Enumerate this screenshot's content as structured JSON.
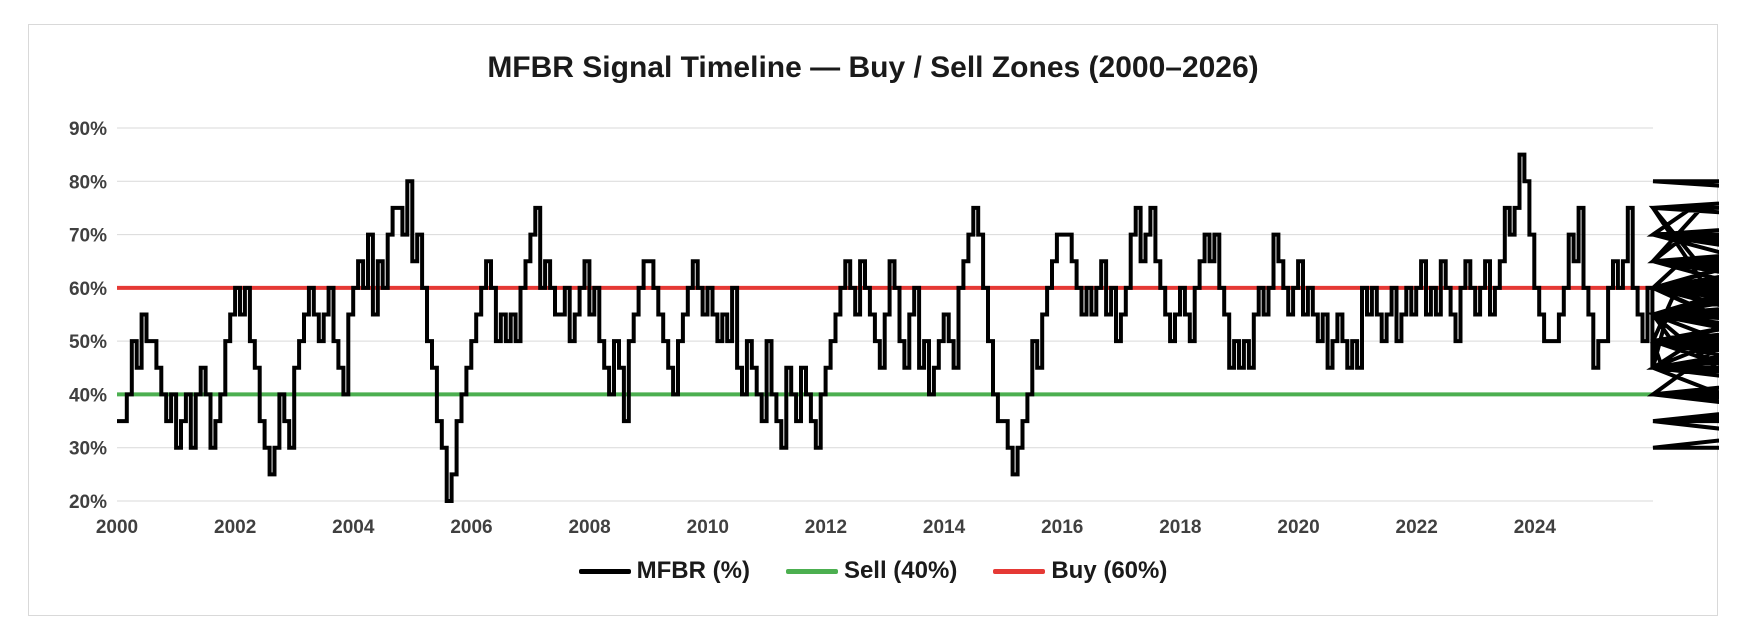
{
  "chart_data": {
    "type": "line",
    "title": "MFBR Signal Timeline — Buy / Sell Zones (2000–2026)",
    "xlabel": "",
    "ylabel": "",
    "xlim": [
      2000,
      2026
    ],
    "ylim": [
      20,
      90
    ],
    "x_ticks": [
      "2000",
      "2002",
      "2004",
      "2006",
      "2008",
      "2010",
      "2012",
      "2014",
      "2016",
      "2018",
      "2020",
      "2022",
      "2024"
    ],
    "y_ticks": [
      "20%",
      "30%",
      "40%",
      "50%",
      "60%",
      "70%",
      "80%",
      "90%"
    ],
    "grid": true,
    "legend_position": "bottom",
    "series": [
      {
        "name": "MFBR (%)",
        "color": "#000000",
        "x_start": 2000,
        "x_step": 0.0833,
        "values": [
          35,
          35,
          40,
          50,
          45,
          55,
          50,
          50,
          45,
          40,
          35,
          40,
          30,
          35,
          40,
          30,
          40,
          45,
          40,
          30,
          35,
          40,
          50,
          55,
          60,
          55,
          60,
          50,
          45,
          35,
          30,
          25,
          30,
          40,
          35,
          30,
          45,
          50,
          55,
          60,
          55,
          50,
          55,
          60,
          50,
          45,
          40,
          55,
          60,
          65,
          60,
          70,
          55,
          65,
          60,
          70,
          75,
          75,
          70,
          80,
          65,
          70,
          60,
          50,
          45,
          35,
          30,
          20,
          25,
          35,
          40,
          45,
          50,
          55,
          60,
          65,
          60,
          50,
          55,
          50,
          55,
          50,
          60,
          65,
          70,
          75,
          60,
          65,
          60,
          55,
          55,
          60,
          50,
          55,
          60,
          65,
          55,
          60,
          50,
          45,
          40,
          50,
          45,
          35,
          50,
          55,
          60,
          65,
          65,
          60,
          55,
          50,
          45,
          40,
          50,
          55,
          60,
          65,
          60,
          55,
          60,
          55,
          50,
          55,
          50,
          60,
          45,
          40,
          50,
          45,
          40,
          35,
          50,
          40,
          35,
          30,
          45,
          40,
          35,
          45,
          40,
          35,
          30,
          40,
          45,
          50,
          55,
          60,
          65,
          60,
          55,
          65,
          60,
          55,
          50,
          45,
          55,
          65,
          60,
          50,
          45,
          55,
          60,
          45,
          50,
          40,
          45,
          50,
          55,
          50,
          45,
          60,
          65,
          70,
          75,
          70,
          60,
          50,
          40,
          35,
          35,
          30,
          25,
          30,
          35,
          40,
          50,
          45,
          55,
          60,
          65,
          70,
          70,
          70,
          65,
          60,
          55,
          60,
          55,
          60,
          65,
          55,
          60,
          50,
          55,
          60,
          70,
          75,
          65,
          70,
          75,
          65,
          60,
          55,
          50,
          55,
          60,
          55,
          50,
          60,
          65,
          70,
          65,
          70,
          60,
          55,
          45,
          50,
          45,
          50,
          45,
          55,
          60,
          55,
          60,
          70,
          65,
          60,
          55,
          60,
          65,
          55,
          60,
          55,
          50,
          55,
          45,
          50,
          55,
          50,
          45,
          50,
          45,
          60,
          55,
          60,
          55,
          50,
          55,
          60,
          50,
          55,
          60,
          55,
          60,
          65,
          55,
          60,
          55,
          65,
          60,
          55,
          50,
          60,
          65,
          60,
          55,
          60,
          65,
          55,
          60,
          65,
          75,
          70,
          75,
          85,
          80,
          70,
          60,
          55,
          50,
          50,
          50,
          55,
          60,
          70,
          65,
          75,
          60,
          55,
          45,
          50,
          50,
          60,
          65,
          60,
          65,
          75,
          60,
          55,
          50,
          60,
          45,
          50,
          45,
          55,
          50,
          60,
          65,
          70,
          75,
          65,
          75,
          60,
          55,
          45,
          40,
          50,
          45,
          55,
          60,
          65,
          60,
          55,
          60,
          55,
          60,
          50,
          45,
          55,
          50,
          55,
          50,
          55,
          60,
          65,
          60,
          65,
          60,
          55,
          65,
          60,
          70,
          60,
          55,
          50,
          45,
          45,
          40,
          35,
          30,
          30,
          35,
          35,
          40,
          45,
          50,
          50,
          55,
          35,
          40,
          45,
          50,
          45,
          50,
          45,
          55,
          45,
          50,
          55,
          60,
          65,
          70,
          60,
          55,
          60,
          55,
          45,
          55,
          60,
          65,
          70,
          75,
          80,
          75,
          70,
          65,
          60,
          55,
          60,
          55,
          60,
          65,
          60,
          70,
          60,
          65,
          60,
          55,
          60,
          70,
          65,
          55,
          50,
          45,
          40,
          35,
          40,
          45,
          40,
          50,
          55,
          60,
          55,
          60,
          65,
          70,
          65,
          60,
          55,
          50,
          35
        ]
      },
      {
        "name": "Sell (40%)",
        "color": "#4caf50",
        "constant": 40
      },
      {
        "name": "Buy (60%)",
        "color": "#e53935",
        "constant": 60
      }
    ]
  }
}
